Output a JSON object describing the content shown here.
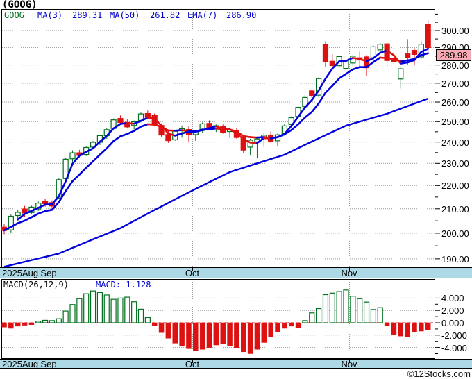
{
  "app": {
    "title": "(GOOG)",
    "watermark": "©12Stocks.com"
  },
  "price_panel": {
    "legend": {
      "symbol": "GOOG",
      "mas": [
        {
          "label": "MA(3)",
          "value": "289.31"
        },
        {
          "label": "MA(50)",
          "value": "261.82"
        },
        {
          "label": "EMA(7)",
          "value": "286.90"
        }
      ]
    },
    "last_price_badge": "289.98",
    "y_tick_labels": [
      "300.00",
      "290.00",
      "280.00",
      "270.00",
      "260.00",
      "250.00",
      "240.00",
      "230.00",
      "220.00",
      "210.00",
      "200.00",
      "190.00"
    ]
  },
  "macd_panel": {
    "legend_label": "MACD(26,12,9)",
    "legend_value": "MACD:-1.128",
    "y_tick_labels": [
      "4.000",
      "2.000",
      "0.000",
      "-2.000",
      "-4.000"
    ]
  },
  "x_axis": {
    "labels": [
      {
        "text": "2025Aug",
        "x": 3,
        "align": "left"
      },
      {
        "text": "Sep",
        "x": 70,
        "align": "center"
      },
      {
        "text": "Oct",
        "x": 277,
        "align": "center"
      },
      {
        "text": "Nov",
        "x": 503,
        "align": "center"
      }
    ]
  },
  "colors": {
    "up": "#007020",
    "down": "#DD1111",
    "ma_blue": "#0000DD",
    "ma_red": "#E01010",
    "ma50": "#0000DD",
    "band": "#ADD8E6",
    "badge_bg": "#F9AAB4",
    "grid": "#999999",
    "zero_line": "#DD1111",
    "legend_blue": "#0000CC",
    "legend_green": "#007020"
  },
  "chart_data": [
    {
      "type": "candlestick",
      "title": "GOOG daily price",
      "symbol": "GOOG",
      "y_scale": "log",
      "y_ticks": [
        300,
        290,
        280,
        270,
        260,
        250,
        240,
        230,
        220,
        210,
        200,
        190
      ],
      "y_minor_ticks": [
        310,
        305,
        295,
        285,
        275,
        265,
        255,
        245,
        235,
        225,
        215,
        205,
        195
      ],
      "x_tick_months": [
        "2025Aug",
        "Sep",
        "Oct",
        "Nov"
      ],
      "last_close": 289.98,
      "overlays": {
        "ma3_last": 289.31,
        "ma50_last": 261.82,
        "ema7_last": 286.9,
        "ma50_points": [
          [
            0,
            187
          ],
          [
            8,
            192
          ],
          [
            17,
            202
          ],
          [
            25,
            214
          ],
          [
            33,
            226
          ],
          [
            41,
            234
          ],
          [
            50,
            248
          ],
          [
            56,
            254
          ],
          [
            62,
            261.8
          ]
        ]
      },
      "candles": [
        {
          "d": "2025-08-21",
          "o": 202.4,
          "h": 203.6,
          "l": 199.6,
          "c": 201.1
        },
        {
          "d": "2025-08-22",
          "o": 201.3,
          "h": 207.6,
          "l": 200.3,
          "c": 206.9
        },
        {
          "d": "2025-08-25",
          "o": 207.2,
          "h": 209.6,
          "l": 205.6,
          "c": 208.5
        },
        {
          "d": "2025-08-26",
          "o": 209.9,
          "h": 211.2,
          "l": 206.6,
          "c": 208.2
        },
        {
          "d": "2025-08-27",
          "o": 208.4,
          "h": 211.3,
          "l": 207.9,
          "c": 210.7
        },
        {
          "d": "2025-08-28",
          "o": 209.9,
          "h": 213.1,
          "l": 209.1,
          "c": 212.4
        },
        {
          "d": "2025-08-29",
          "o": 213.3,
          "h": 214.2,
          "l": 210.9,
          "c": 212.2
        },
        {
          "d": "2025-09-02",
          "o": 212.6,
          "h": 213.6,
          "l": 209.6,
          "c": 211.2
        },
        {
          "d": "2025-09-03",
          "o": 214.6,
          "h": 223.2,
          "l": 214.1,
          "c": 222.6
        },
        {
          "d": "2025-09-04",
          "o": 223.1,
          "h": 232.6,
          "l": 222.1,
          "c": 231.9
        },
        {
          "d": "2025-09-05",
          "o": 232.1,
          "h": 236.1,
          "l": 230.6,
          "c": 234.9
        },
        {
          "d": "2025-09-08",
          "o": 234.9,
          "h": 236.3,
          "l": 232.4,
          "c": 233.7
        },
        {
          "d": "2025-09-09",
          "o": 234.1,
          "h": 238.1,
          "l": 233.4,
          "c": 237.4
        },
        {
          "d": "2025-09-10",
          "o": 237.6,
          "h": 240.6,
          "l": 236.6,
          "c": 239.9
        },
        {
          "d": "2025-09-11",
          "o": 239.9,
          "h": 243.6,
          "l": 238.6,
          "c": 243.1
        },
        {
          "d": "2025-09-12",
          "o": 243.1,
          "h": 246.6,
          "l": 241.6,
          "c": 246.0
        },
        {
          "d": "2025-09-15",
          "o": 246.6,
          "h": 251.6,
          "l": 245.6,
          "c": 250.9
        },
        {
          "d": "2025-09-16",
          "o": 251.6,
          "h": 253.1,
          "l": 248.6,
          "c": 249.6
        },
        {
          "d": "2025-09-17",
          "o": 249.6,
          "h": 251.1,
          "l": 246.6,
          "c": 247.4
        },
        {
          "d": "2025-09-18",
          "o": 248.1,
          "h": 250.6,
          "l": 246.1,
          "c": 249.9
        },
        {
          "d": "2025-09-19",
          "o": 250.6,
          "h": 254.6,
          "l": 249.6,
          "c": 253.9
        },
        {
          "d": "2025-09-22",
          "o": 254.1,
          "h": 255.6,
          "l": 251.1,
          "c": 252.2
        },
        {
          "d": "2025-09-23",
          "o": 253.1,
          "h": 254.1,
          "l": 247.6,
          "c": 248.3
        },
        {
          "d": "2025-09-24",
          "o": 248.1,
          "h": 249.1,
          "l": 242.6,
          "c": 243.4
        },
        {
          "d": "2025-09-25",
          "o": 243.6,
          "h": 245.6,
          "l": 239.6,
          "c": 240.7
        },
        {
          "d": "2025-09-26",
          "o": 241.1,
          "h": 245.9,
          "l": 240.6,
          "c": 245.2
        },
        {
          "d": "2025-09-29",
          "o": 245.6,
          "h": 248.1,
          "l": 242.1,
          "c": 246.5
        },
        {
          "d": "2025-09-30",
          "o": 246.1,
          "h": 247.6,
          "l": 240.1,
          "c": 243.5
        },
        {
          "d": "2025-10-01",
          "o": 243.6,
          "h": 245.6,
          "l": 240.6,
          "c": 245.0
        },
        {
          "d": "2025-10-02",
          "o": 245.6,
          "h": 249.6,
          "l": 244.6,
          "c": 248.9
        },
        {
          "d": "2025-10-03",
          "o": 249.1,
          "h": 250.6,
          "l": 245.6,
          "c": 246.3
        },
        {
          "d": "2025-10-06",
          "o": 246.6,
          "h": 248.6,
          "l": 244.9,
          "c": 248.0
        },
        {
          "d": "2025-10-07",
          "o": 247.6,
          "h": 248.6,
          "l": 244.1,
          "c": 244.7
        },
        {
          "d": "2025-10-08",
          "o": 245.1,
          "h": 246.6,
          "l": 242.1,
          "c": 245.9
        },
        {
          "d": "2025-10-09",
          "o": 245.6,
          "h": 246.6,
          "l": 241.6,
          "c": 242.2
        },
        {
          "d": "2025-10-10",
          "o": 242.1,
          "h": 243.1,
          "l": 234.9,
          "c": 236.2
        },
        {
          "d": "2025-10-13",
          "o": 237.6,
          "h": 241.6,
          "l": 233.6,
          "c": 240.9
        },
        {
          "d": "2025-10-14",
          "o": 240.1,
          "h": 242.6,
          "l": 232.6,
          "c": 241.5
        },
        {
          "d": "2025-10-15",
          "o": 241.6,
          "h": 244.6,
          "l": 237.6,
          "c": 243.3
        },
        {
          "d": "2025-10-16",
          "o": 243.1,
          "h": 245.1,
          "l": 239.6,
          "c": 240.4
        },
        {
          "d": "2025-10-17",
          "o": 240.6,
          "h": 244.1,
          "l": 238.1,
          "c": 243.5
        },
        {
          "d": "2025-10-20",
          "o": 244.1,
          "h": 248.6,
          "l": 243.1,
          "c": 247.9
        },
        {
          "d": "2025-10-21",
          "o": 248.6,
          "h": 252.6,
          "l": 247.6,
          "c": 252.0
        },
        {
          "d": "2025-10-22",
          "o": 252.6,
          "h": 258.1,
          "l": 251.6,
          "c": 257.3
        },
        {
          "d": "2025-10-23",
          "o": 257.6,
          "h": 263.6,
          "l": 257.1,
          "c": 262.4
        },
        {
          "d": "2025-10-24",
          "o": 265.9,
          "h": 266.6,
          "l": 262.1,
          "c": 263.3
        },
        {
          "d": "2025-10-27",
          "o": 263.6,
          "h": 273.1,
          "l": 262.6,
          "c": 272.5
        },
        {
          "d": "2025-10-28",
          "o": 291.9,
          "h": 293.6,
          "l": 279.1,
          "c": 281.7
        },
        {
          "d": "2025-10-29",
          "o": 282.1,
          "h": 286.1,
          "l": 278.6,
          "c": 279.7
        },
        {
          "d": "2025-10-30",
          "o": 279.6,
          "h": 285.6,
          "l": 278.6,
          "c": 284.8
        },
        {
          "d": "2025-10-31",
          "o": 278.1,
          "h": 283.1,
          "l": 274.6,
          "c": 282.3
        },
        {
          "d": "2025-11-03",
          "o": 281.1,
          "h": 285.6,
          "l": 280.1,
          "c": 285.0
        },
        {
          "d": "2025-11-04",
          "o": 284.1,
          "h": 287.6,
          "l": 278.6,
          "c": 282.8
        },
        {
          "d": "2025-11-05",
          "o": 284.6,
          "h": 285.6,
          "l": 274.1,
          "c": 278.5
        },
        {
          "d": "2025-11-06",
          "o": 284.1,
          "h": 291.1,
          "l": 283.1,
          "c": 290.4
        },
        {
          "d": "2025-11-07",
          "o": 288.6,
          "h": 292.6,
          "l": 287.6,
          "c": 291.9
        },
        {
          "d": "2025-11-10",
          "o": 292.1,
          "h": 293.1,
          "l": 278.6,
          "c": 282.5
        },
        {
          "d": "2025-11-11",
          "o": 283.6,
          "h": 290.6,
          "l": 280.6,
          "c": 282.0
        },
        {
          "d": "2025-11-12",
          "o": 272.3,
          "h": 279.1,
          "l": 267.1,
          "c": 277.9
        },
        {
          "d": "2025-11-13",
          "o": 286.3,
          "h": 294.9,
          "l": 280.1,
          "c": 284.4
        },
        {
          "d": "2025-11-14",
          "o": 288.3,
          "h": 289.6,
          "l": 280.1,
          "c": 286.0
        },
        {
          "d": "2025-11-17",
          "o": 284.6,
          "h": 293.6,
          "l": 283.6,
          "c": 291.9
        },
        {
          "d": "2025-11-18",
          "o": 303.9,
          "h": 306.3,
          "l": 287.6,
          "c": 289.98
        }
      ]
    },
    {
      "type": "bar",
      "title": "MACD(26,12,9)",
      "last": -1.128,
      "y_ticks": [
        4,
        2,
        0,
        -2,
        -4
      ],
      "values": [
        -0.7,
        -0.9,
        -0.55,
        -0.4,
        -0.3,
        0.25,
        0.4,
        0.35,
        0.65,
        1.9,
        2.95,
        3.9,
        4.7,
        5.15,
        4.9,
        4.5,
        3.8,
        4.0,
        4.15,
        3.4,
        2.2,
        0.85,
        -0.5,
        -1.6,
        -2.5,
        -3.3,
        -3.8,
        -4.2,
        -4.5,
        -4.3,
        -4.0,
        -3.6,
        -3.4,
        -3.7,
        -4.1,
        -4.7,
        -5.0,
        -4.3,
        -3.2,
        -2.3,
        -1.5,
        -0.9,
        -0.55,
        -0.8,
        0.35,
        1.6,
        2.3,
        4.55,
        4.8,
        5.05,
        5.3,
        4.3,
        3.9,
        3.35,
        2.15,
        2.45,
        -0.5,
        -1.9,
        -2.15,
        -2.3,
        -1.55,
        -1.35,
        -1.128
      ]
    }
  ]
}
